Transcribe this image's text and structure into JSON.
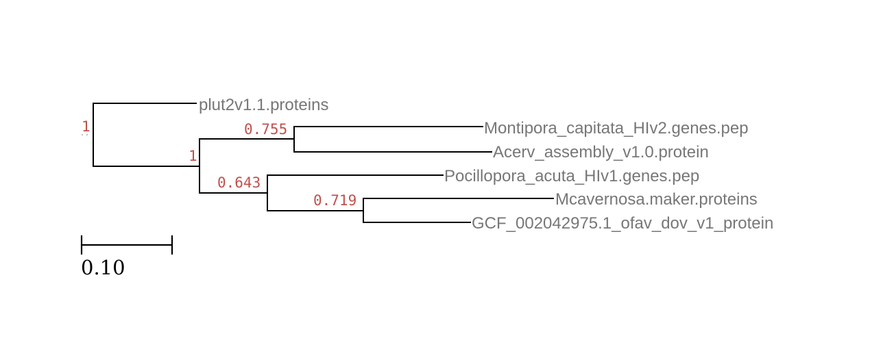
{
  "tree": {
    "tips": [
      "plut2v1.1.proteins",
      "Montipora_capitata_HIv2.genes.pep",
      "Acerv_assembly_v1.0.protein",
      "Pocillopora_acuta_HIv1.genes.pep",
      "Mcavernosa.maker.proteins",
      "GCF_002042975.1_ofav_dov_v1_protein"
    ],
    "supports": {
      "root": "1",
      "inner": "1",
      "montipora_acerv": "0.755",
      "pocillopora_clade": "0.643",
      "mcav_ofav": "0.719"
    },
    "colors": {
      "branch": "#000000",
      "tip_label": "#777777",
      "support_label": "#c0504d"
    }
  },
  "scale_bar": {
    "label": "0.10"
  }
}
